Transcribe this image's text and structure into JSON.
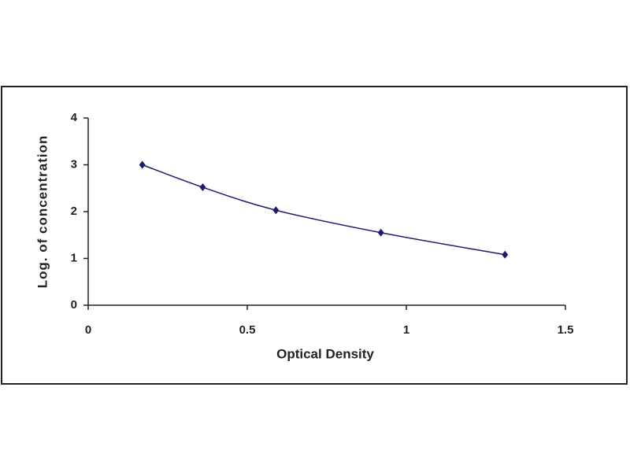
{
  "chart_data": {
    "type": "scatter",
    "x_label": "Optical Density",
    "y_label": "Log. of concentration",
    "x": [
      0.17,
      0.36,
      0.59,
      0.92,
      1.31
    ],
    "values": [
      3.0,
      2.52,
      2.03,
      1.55,
      1.08
    ],
    "color": "#1c1c6e",
    "smooth_line": true,
    "xlim": [
      0,
      1.5
    ],
    "xticks": [
      0,
      0.5,
      1,
      1.5
    ],
    "ylim": [
      0,
      4
    ],
    "yticks": [
      0,
      1,
      2,
      3,
      4
    ]
  }
}
